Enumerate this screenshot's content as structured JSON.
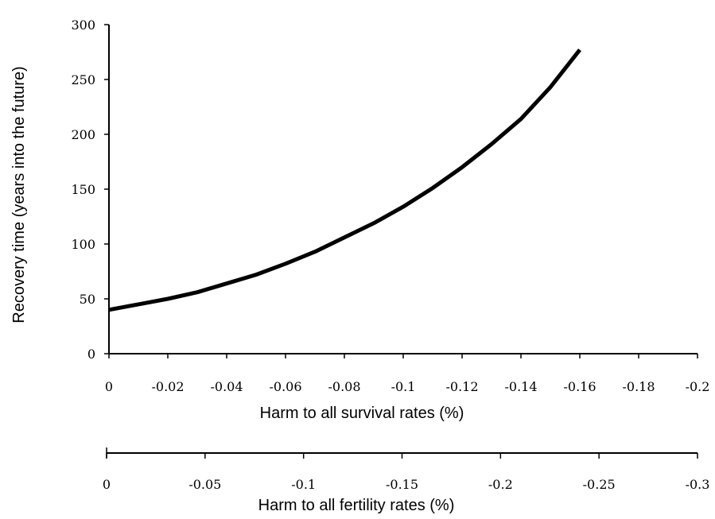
{
  "chart_data": {
    "type": "line",
    "title": "",
    "ylabel": "Recovery time (years into the future)",
    "xlabel": "Harm to all survival rates (%)",
    "x2label": "Harm to all fertility rates (%)",
    "ylim": [
      0,
      300
    ],
    "xlim": [
      0,
      -0.2
    ],
    "x2lim": [
      0,
      -0.3
    ],
    "grid": false,
    "y_ticks": [
      {
        "value": 0,
        "label": "0"
      },
      {
        "value": 50,
        "label": "50"
      },
      {
        "value": 100,
        "label": "100"
      },
      {
        "value": 150,
        "label": "150"
      },
      {
        "value": 200,
        "label": "200"
      },
      {
        "value": 250,
        "label": "250"
      },
      {
        "value": 300,
        "label": "300"
      }
    ],
    "x_ticks": [
      {
        "value": 0,
        "label": "0"
      },
      {
        "value": -0.02,
        "label": "-0.02"
      },
      {
        "value": -0.04,
        "label": "-0.04"
      },
      {
        "value": -0.06,
        "label": "-0.06"
      },
      {
        "value": -0.08,
        "label": "-0.08"
      },
      {
        "value": -0.1,
        "label": "-0.1"
      },
      {
        "value": -0.12,
        "label": "-0.12"
      },
      {
        "value": -0.14,
        "label": "-0.14"
      },
      {
        "value": -0.16,
        "label": "-0.16"
      },
      {
        "value": -0.18,
        "label": "-0.18"
      },
      {
        "value": -0.2,
        "label": "-0.2"
      }
    ],
    "x2_ticks": [
      {
        "value": 0,
        "label": "0"
      },
      {
        "value": -0.05,
        "label": "-0.05"
      },
      {
        "value": -0.1,
        "label": "-0.1"
      },
      {
        "value": -0.15,
        "label": "-0.15"
      },
      {
        "value": -0.2,
        "label": "-0.2"
      },
      {
        "value": -0.25,
        "label": "-0.25"
      },
      {
        "value": -0.3,
        "label": "-0.3"
      }
    ],
    "series": [
      {
        "x": [
          0,
          -0.01,
          -0.02,
          -0.03,
          -0.04,
          -0.05,
          -0.06,
          -0.07,
          -0.08,
          -0.09,
          -0.1,
          -0.11,
          -0.12,
          -0.13,
          -0.14,
          -0.15,
          -0.16
        ],
        "y": [
          40,
          45,
          50,
          56,
          64,
          72,
          82,
          93,
          106,
          119,
          134,
          151,
          170,
          191,
          214,
          243,
          277
        ]
      }
    ]
  }
}
